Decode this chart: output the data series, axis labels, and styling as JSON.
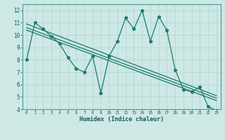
{
  "title": "",
  "xlabel": "Humidex (Indice chaleur)",
  "ylabel": "",
  "xlim": [
    -0.5,
    23.5
  ],
  "ylim": [
    4,
    12.5
  ],
  "yticks": [
    4,
    5,
    6,
    7,
    8,
    9,
    10,
    11,
    12
  ],
  "xticks": [
    0,
    1,
    2,
    3,
    4,
    5,
    6,
    7,
    8,
    9,
    10,
    11,
    12,
    13,
    14,
    15,
    16,
    17,
    18,
    19,
    20,
    21,
    22,
    23
  ],
  "background_color": "#cde8e5",
  "line_color": "#1a7a6e",
  "grid_color": "#b0d4ce",
  "data_x": [
    0,
    1,
    2,
    3,
    4,
    5,
    6,
    7,
    8,
    9,
    10,
    11,
    12,
    13,
    14,
    15,
    16,
    17,
    18,
    19,
    20,
    21,
    22,
    23
  ],
  "data_y": [
    8.0,
    11.0,
    10.5,
    9.9,
    9.3,
    8.2,
    7.3,
    7.0,
    8.3,
    5.3,
    8.3,
    9.5,
    11.4,
    10.5,
    12.0,
    9.5,
    11.5,
    10.4,
    7.2,
    5.6,
    5.4,
    5.8,
    4.2,
    3.9
  ],
  "trend1_x": [
    0,
    23
  ],
  "trend1_y": [
    10.9,
    5.1
  ],
  "trend2_x": [
    0,
    23
  ],
  "trend2_y": [
    10.4,
    4.7
  ],
  "trend3_x": [
    0,
    23
  ],
  "trend3_y": [
    10.6,
    4.9
  ]
}
